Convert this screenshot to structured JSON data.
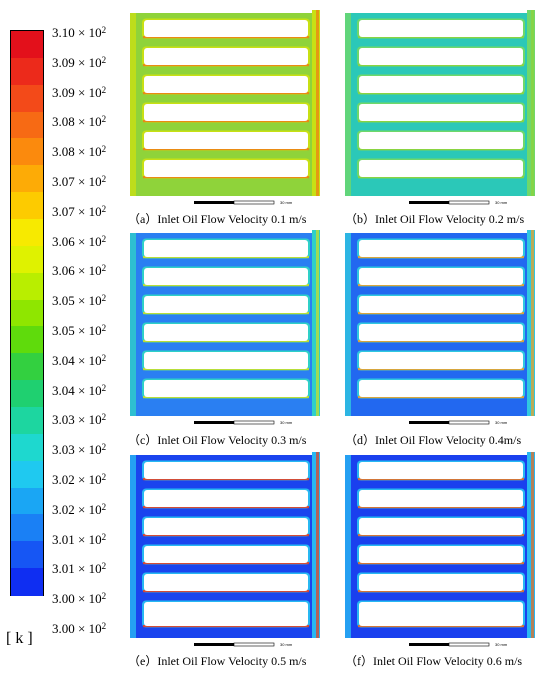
{
  "legend": {
    "ticks": [
      "3.10 × 10",
      "3.09 × 10",
      "3.09 × 10",
      "3.08 × 10",
      "3.08 × 10",
      "3.07 × 10",
      "3.07 × 10",
      "3.06 × 10",
      "3.06 × 10",
      "3.05 × 10",
      "3.05 × 10",
      "3.04 × 10",
      "3.04 × 10",
      "3.03 × 10",
      "3.03 × 10",
      "3.02 × 10",
      "3.02 × 10",
      "3.01 × 10",
      "3.01 × 10",
      "3.00 × 10",
      "3.00 × 10"
    ],
    "exponent": "2",
    "unit": "[ k ]",
    "colors": [
      "#e3101b",
      "#ec2a1b",
      "#f34a19",
      "#f76a14",
      "#fb8a0d",
      "#fdab06",
      "#fdcb00",
      "#f7ea00",
      "#dff200",
      "#b9ee00",
      "#8fe600",
      "#5fdb0c",
      "#33d040",
      "#1fd070",
      "#1dd6a0",
      "#1ed8cf",
      "#1fc9f0",
      "#1aa6f4",
      "#1a80f5",
      "#1656f4",
      "#0f2ef2"
    ]
  },
  "panels": [
    {
      "caption": "（a）Inlet Oil Flow Velocity 0.1 m/s",
      "scale": "30 mm",
      "bg": "#8fd33a",
      "edge": "#c8e014",
      "hot": "#f07b13"
    },
    {
      "caption": "（b）Inlet Oil Flow Velocity 0.2 m/s",
      "scale": "30 mm",
      "bg": "#2bc8b8",
      "edge": "#6fd86a",
      "hot": "#8fd33a"
    },
    {
      "caption": "（c）Inlet Oil Flow Velocity 0.3 m/s",
      "scale": "30 mm",
      "bg": "#2a7ff2",
      "edge": "#2fd0c8",
      "hot": "#d0e020"
    },
    {
      "caption": "（d）Inlet Oil Flow Velocity 0.4m/s",
      "scale": "30 mm",
      "bg": "#2268f0",
      "edge": "#30c8e0",
      "hot": "#f5a020"
    },
    {
      "caption": "（e）Inlet Oil Flow Velocity 0.5 m/s",
      "scale": "30 mm",
      "bg": "#1a44ee",
      "edge": "#28b8f2",
      "hot": "#f03a18"
    },
    {
      "caption": "（f）Inlet Oil Flow Velocity 0.6 m/s",
      "scale": "30 mm",
      "bg": "#1a40ee",
      "edge": "#28b8f2",
      "hot": "#f06a18"
    }
  ]
}
